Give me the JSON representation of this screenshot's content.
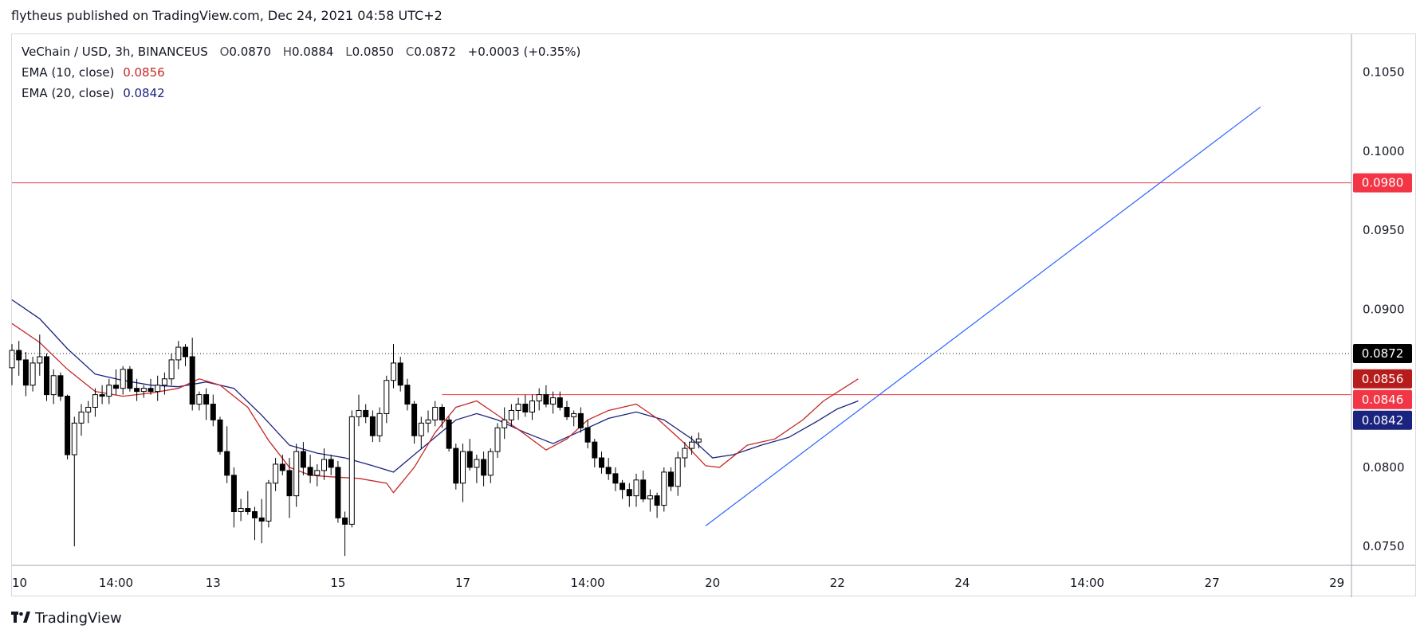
{
  "header": {
    "published_text": "flytheus published on TradingView.com, Dec 24, 2021 04:58 UTC+2"
  },
  "legend": {
    "symbol": "VeChain / USD, 3h, BINANCEUS",
    "o_label": "O",
    "o_value": "0.0870",
    "h_label": "H",
    "h_value": "0.0884",
    "l_label": "L",
    "l_value": "0.0850",
    "c_label": "C",
    "c_value": "0.0872",
    "change": "+0.0003 (+0.35%)",
    "ema10_label": "EMA (10, close)",
    "ema10_value": "0.0856",
    "ema20_label": "EMA (20, close)",
    "ema20_value": "0.0842"
  },
  "footer": {
    "brand": "TradingView"
  },
  "colors": {
    "ema10": "#c62828",
    "ema20": "#1a237e",
    "hline": "#f23645",
    "trend": "#2962ff",
    "candle_up_fill": "#ffffff",
    "candle_down_fill": "#000000"
  },
  "chart_data": {
    "type": "candlestick",
    "yaxis": {
      "ticks": [
        "0.1050",
        "0.1000",
        "0.0950",
        "0.0900",
        "0.0800",
        "0.0750"
      ],
      "tick_values": [
        0.105,
        0.1,
        0.095,
        0.09,
        0.08,
        0.075
      ],
      "range": [
        0.0738,
        0.1074
      ]
    },
    "xaxis": {
      "ticks": [
        "10",
        "14:00",
        "13",
        "15",
        "17",
        "14:00",
        "20",
        "22",
        "24",
        "14:00",
        "27",
        "29"
      ],
      "tick_index": [
        0,
        15,
        29,
        47,
        65,
        83,
        101,
        119,
        137,
        155,
        173,
        191
      ]
    },
    "price_tags": [
      {
        "label": "0.0980",
        "value": 0.098,
        "bg": "#f23645"
      },
      {
        "label": "0.0872",
        "value": 0.0872,
        "bg": "#000000"
      },
      {
        "label": "0.0856",
        "value": 0.0856,
        "bg": "#b71c1c"
      },
      {
        "label": "0.0846",
        "value": 0.0846,
        "bg": "#f23645"
      },
      {
        "label": "0.0842",
        "value": 0.0842,
        "bg": "#1a237e"
      }
    ],
    "horizontal_lines": [
      0.098,
      0.0846
    ],
    "last_price": 0.0872,
    "trend_line": {
      "from": [
        100,
        0.0763
      ],
      "to": [
        180,
        0.1028
      ]
    },
    "ema10": [
      [
        0,
        0.0891
      ],
      [
        4,
        0.0879
      ],
      [
        8,
        0.0862
      ],
      [
        12,
        0.0848
      ],
      [
        16,
        0.0845
      ],
      [
        20,
        0.0847
      ],
      [
        24,
        0.085
      ],
      [
        27,
        0.0856
      ],
      [
        30,
        0.0852
      ],
      [
        34,
        0.0838
      ],
      [
        37,
        0.0817
      ],
      [
        40,
        0.08
      ],
      [
        43,
        0.0795
      ],
      [
        46,
        0.0794
      ],
      [
        50,
        0.0793
      ],
      [
        54,
        0.079
      ],
      [
        55,
        0.0784
      ],
      [
        58,
        0.08
      ],
      [
        61,
        0.0822
      ],
      [
        64,
        0.0838
      ],
      [
        67,
        0.0842
      ],
      [
        70,
        0.0833
      ],
      [
        73,
        0.0824
      ],
      [
        77,
        0.0811
      ],
      [
        80,
        0.0818
      ],
      [
        83,
        0.083
      ],
      [
        86,
        0.0836
      ],
      [
        90,
        0.084
      ],
      [
        93,
        0.0831
      ],
      [
        97,
        0.0815
      ],
      [
        100,
        0.0801
      ],
      [
        102,
        0.08
      ],
      [
        106,
        0.0814
      ],
      [
        110,
        0.0818
      ],
      [
        114,
        0.083
      ],
      [
        117,
        0.0842
      ],
      [
        122,
        0.0856
      ]
    ],
    "ema20": [
      [
        0,
        0.0906
      ],
      [
        4,
        0.0894
      ],
      [
        8,
        0.0875
      ],
      [
        12,
        0.0859
      ],
      [
        16,
        0.0855
      ],
      [
        20,
        0.0852
      ],
      [
        24,
        0.0851
      ],
      [
        28,
        0.0854
      ],
      [
        32,
        0.085
      ],
      [
        36,
        0.0833
      ],
      [
        40,
        0.0814
      ],
      [
        44,
        0.0809
      ],
      [
        48,
        0.0806
      ],
      [
        52,
        0.0801
      ],
      [
        55,
        0.0797
      ],
      [
        58,
        0.0808
      ],
      [
        61,
        0.0819
      ],
      [
        64,
        0.083
      ],
      [
        67,
        0.0834
      ],
      [
        70,
        0.083
      ],
      [
        74,
        0.0822
      ],
      [
        78,
        0.0815
      ],
      [
        82,
        0.0823
      ],
      [
        86,
        0.0831
      ],
      [
        90,
        0.0835
      ],
      [
        94,
        0.083
      ],
      [
        98,
        0.0818
      ],
      [
        101,
        0.0806
      ],
      [
        104,
        0.0808
      ],
      [
        108,
        0.0814
      ],
      [
        112,
        0.0819
      ],
      [
        116,
        0.0829
      ],
      [
        119,
        0.0837
      ],
      [
        122,
        0.0842
      ]
    ],
    "candles": [
      [
        0,
        0.0863,
        0.0878,
        0.0852,
        0.0874
      ],
      [
        1,
        0.0874,
        0.088,
        0.0858,
        0.0868
      ],
      [
        2,
        0.0868,
        0.0873,
        0.0845,
        0.0852
      ],
      [
        3,
        0.0852,
        0.087,
        0.0848,
        0.0866
      ],
      [
        4,
        0.0866,
        0.0884,
        0.0858,
        0.087
      ],
      [
        5,
        0.087,
        0.0872,
        0.0842,
        0.0846
      ],
      [
        6,
        0.0846,
        0.0862,
        0.084,
        0.0858
      ],
      [
        7,
        0.0858,
        0.086,
        0.0842,
        0.0845
      ],
      [
        8,
        0.0845,
        0.0846,
        0.0805,
        0.0808
      ],
      [
        9,
        0.0808,
        0.0832,
        0.075,
        0.0828
      ],
      [
        10,
        0.0828,
        0.084,
        0.082,
        0.0835
      ],
      [
        11,
        0.0835,
        0.0842,
        0.0828,
        0.0838
      ],
      [
        12,
        0.0838,
        0.085,
        0.0832,
        0.0846
      ],
      [
        13,
        0.0846,
        0.0852,
        0.084,
        0.0845
      ],
      [
        14,
        0.0845,
        0.0856,
        0.084,
        0.0852
      ],
      [
        15,
        0.0852,
        0.0862,
        0.0846,
        0.085
      ],
      [
        16,
        0.085,
        0.0864,
        0.0846,
        0.0862
      ],
      [
        17,
        0.0862,
        0.0864,
        0.0848,
        0.085
      ],
      [
        18,
        0.085,
        0.0856,
        0.0842,
        0.0848
      ],
      [
        19,
        0.0848,
        0.0852,
        0.0844,
        0.085
      ],
      [
        20,
        0.085,
        0.0856,
        0.0846,
        0.0848
      ],
      [
        21,
        0.0848,
        0.0858,
        0.0842,
        0.0852
      ],
      [
        22,
        0.0852,
        0.086,
        0.0846,
        0.0856
      ],
      [
        23,
        0.0856,
        0.0872,
        0.0852,
        0.0868
      ],
      [
        24,
        0.0868,
        0.088,
        0.0862,
        0.0876
      ],
      [
        25,
        0.0876,
        0.0878,
        0.0864,
        0.087
      ],
      [
        26,
        0.087,
        0.0882,
        0.0836,
        0.084
      ],
      [
        27,
        0.084,
        0.0848,
        0.0836,
        0.0846
      ],
      [
        28,
        0.0846,
        0.085,
        0.083,
        0.084
      ],
      [
        29,
        0.084,
        0.0846,
        0.0826,
        0.083
      ],
      [
        30,
        0.083,
        0.0832,
        0.0808,
        0.081
      ],
      [
        31,
        0.081,
        0.0826,
        0.079,
        0.0795
      ],
      [
        32,
        0.0795,
        0.08,
        0.0762,
        0.0772
      ],
      [
        33,
        0.0772,
        0.078,
        0.0766,
        0.0774
      ],
      [
        34,
        0.0774,
        0.0785,
        0.077,
        0.0772
      ],
      [
        35,
        0.0772,
        0.0775,
        0.0754,
        0.0768
      ],
      [
        36,
        0.0768,
        0.078,
        0.0752,
        0.0766
      ],
      [
        37,
        0.0766,
        0.0792,
        0.0762,
        0.079
      ],
      [
        38,
        0.079,
        0.0806,
        0.0785,
        0.0802
      ],
      [
        39,
        0.0802,
        0.0808,
        0.0795,
        0.0798
      ],
      [
        40,
        0.0798,
        0.0806,
        0.0768,
        0.0782
      ],
      [
        41,
        0.0782,
        0.0815,
        0.0775,
        0.081
      ],
      [
        42,
        0.081,
        0.0816,
        0.0795,
        0.08
      ],
      [
        43,
        0.08,
        0.0808,
        0.079,
        0.0795
      ],
      [
        44,
        0.0795,
        0.0802,
        0.0788,
        0.0798
      ],
      [
        45,
        0.0798,
        0.0812,
        0.0792,
        0.0805
      ],
      [
        46,
        0.0805,
        0.0808,
        0.0795,
        0.08
      ],
      [
        47,
        0.08,
        0.0804,
        0.0765,
        0.0768
      ],
      [
        48,
        0.0768,
        0.0772,
        0.0744,
        0.0764
      ],
      [
        49,
        0.0764,
        0.0836,
        0.0762,
        0.0832
      ],
      [
        50,
        0.0832,
        0.0846,
        0.0826,
        0.0836
      ],
      [
        51,
        0.0836,
        0.084,
        0.0828,
        0.0832
      ],
      [
        52,
        0.0832,
        0.0836,
        0.0816,
        0.082
      ],
      [
        53,
        0.082,
        0.0838,
        0.0816,
        0.0834
      ],
      [
        54,
        0.0834,
        0.0858,
        0.0828,
        0.0855
      ],
      [
        55,
        0.0855,
        0.0878,
        0.085,
        0.0866
      ],
      [
        56,
        0.0866,
        0.087,
        0.0848,
        0.0852
      ],
      [
        57,
        0.0852,
        0.0856,
        0.0836,
        0.084
      ],
      [
        58,
        0.084,
        0.0842,
        0.0815,
        0.082
      ],
      [
        59,
        0.082,
        0.0832,
        0.0812,
        0.0828
      ],
      [
        60,
        0.0828,
        0.0836,
        0.0822,
        0.083
      ],
      [
        61,
        0.083,
        0.0842,
        0.0826,
        0.0838
      ],
      [
        62,
        0.0838,
        0.084,
        0.0825,
        0.083
      ],
      [
        63,
        0.083,
        0.0832,
        0.081,
        0.0812
      ],
      [
        64,
        0.0812,
        0.0815,
        0.0786,
        0.079
      ],
      [
        65,
        0.079,
        0.0815,
        0.0778,
        0.081
      ],
      [
        66,
        0.081,
        0.0818,
        0.0798,
        0.08
      ],
      [
        67,
        0.08,
        0.0808,
        0.079,
        0.0805
      ],
      [
        68,
        0.0805,
        0.081,
        0.0788,
        0.0795
      ],
      [
        69,
        0.0795,
        0.0812,
        0.079,
        0.081
      ],
      [
        70,
        0.081,
        0.0828,
        0.0806,
        0.0825
      ],
      [
        71,
        0.0825,
        0.0838,
        0.0818,
        0.083
      ],
      [
        72,
        0.083,
        0.084,
        0.0826,
        0.0836
      ],
      [
        73,
        0.0836,
        0.0844,
        0.083,
        0.084
      ],
      [
        74,
        0.084,
        0.0846,
        0.0832,
        0.0835
      ],
      [
        75,
        0.0835,
        0.0846,
        0.083,
        0.0842
      ],
      [
        76,
        0.0842,
        0.085,
        0.0836,
        0.0846
      ],
      [
        77,
        0.0846,
        0.0852,
        0.0838,
        0.084
      ],
      [
        78,
        0.084,
        0.0848,
        0.0834,
        0.0844
      ],
      [
        79,
        0.0844,
        0.0848,
        0.0836,
        0.0838
      ],
      [
        80,
        0.0838,
        0.0842,
        0.083,
        0.0832
      ],
      [
        81,
        0.0832,
        0.0836,
        0.0826,
        0.0834
      ],
      [
        82,
        0.0834,
        0.0838,
        0.0822,
        0.0825
      ],
      [
        83,
        0.0825,
        0.083,
        0.0812,
        0.0816
      ],
      [
        84,
        0.0816,
        0.0818,
        0.08,
        0.0806
      ],
      [
        85,
        0.0806,
        0.081,
        0.0796,
        0.08
      ],
      [
        86,
        0.08,
        0.0806,
        0.0792,
        0.0796
      ],
      [
        87,
        0.0796,
        0.08,
        0.0785,
        0.079
      ],
      [
        88,
        0.079,
        0.0792,
        0.078,
        0.0786
      ],
      [
        89,
        0.0786,
        0.079,
        0.0775,
        0.0782
      ],
      [
        90,
        0.0782,
        0.0796,
        0.0775,
        0.0792
      ],
      [
        91,
        0.0792,
        0.0798,
        0.0778,
        0.078
      ],
      [
        92,
        0.078,
        0.0786,
        0.0772,
        0.0782
      ],
      [
        93,
        0.0782,
        0.0784,
        0.0768,
        0.0776
      ],
      [
        94,
        0.0776,
        0.08,
        0.0772,
        0.0797
      ],
      [
        95,
        0.0797,
        0.08,
        0.0785,
        0.0788
      ],
      [
        96,
        0.0788,
        0.081,
        0.0782,
        0.0806
      ],
      [
        97,
        0.0806,
        0.0816,
        0.08,
        0.0812
      ],
      [
        98,
        0.0812,
        0.082,
        0.0808,
        0.0816
      ],
      [
        99,
        0.0816,
        0.0822,
        0.0812,
        0.0818
      ]
    ]
  }
}
